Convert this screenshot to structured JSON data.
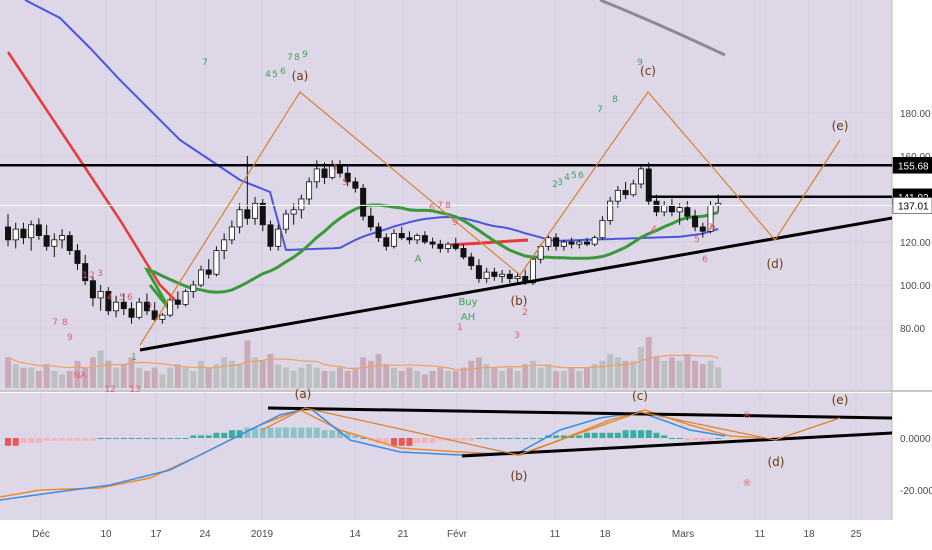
{
  "chart_data": [
    {
      "type": "candlestick",
      "title": "",
      "y_axis": {
        "side": "right",
        "ticks": [
          80.0,
          100.0,
          120.0,
          137.01,
          141.02,
          155.68,
          160.0,
          180.0
        ],
        "ylim": [
          66,
          186
        ]
      },
      "x_axis": {
        "ticks": [
          "Déc",
          "10",
          "17",
          "24",
          "2019",
          "14",
          "21",
          "Févr",
          "11",
          "18",
          "Mars",
          "11",
          "18",
          "25"
        ]
      },
      "background": "#ddd7e8",
      "price_labels": {
        "current": "137.01",
        "level_1": "141.02",
        "level_2": "155.68"
      },
      "candles": [
        {
          "o": 127,
          "h": 133,
          "l": 118,
          "c": 121
        },
        {
          "o": 121,
          "h": 129,
          "l": 117,
          "c": 126
        },
        {
          "o": 126,
          "h": 129,
          "l": 119,
          "c": 122
        },
        {
          "o": 122,
          "h": 130,
          "l": 116,
          "c": 128
        },
        {
          "o": 128,
          "h": 131,
          "l": 121,
          "c": 123
        },
        {
          "o": 123,
          "h": 128,
          "l": 116,
          "c": 118
        },
        {
          "o": 118,
          "h": 124,
          "l": 113,
          "c": 121
        },
        {
          "o": 121,
          "h": 126,
          "l": 117,
          "c": 123
        },
        {
          "o": 123,
          "h": 125,
          "l": 114,
          "c": 116
        },
        {
          "o": 116,
          "h": 119,
          "l": 107,
          "c": 110
        },
        {
          "o": 110,
          "h": 114,
          "l": 100,
          "c": 102
        },
        {
          "o": 102,
          "h": 104,
          "l": 90,
          "c": 94
        },
        {
          "o": 94,
          "h": 100,
          "l": 88,
          "c": 97
        },
        {
          "o": 97,
          "h": 99,
          "l": 86,
          "c": 88
        },
        {
          "o": 88,
          "h": 95,
          "l": 85,
          "c": 92
        },
        {
          "o": 92,
          "h": 96,
          "l": 86,
          "c": 89
        },
        {
          "o": 89,
          "h": 92,
          "l": 82,
          "c": 85
        },
        {
          "o": 85,
          "h": 94,
          "l": 84,
          "c": 92
        },
        {
          "o": 92,
          "h": 96,
          "l": 86,
          "c": 88
        },
        {
          "o": 88,
          "h": 92,
          "l": 83,
          "c": 84
        },
        {
          "o": 84,
          "h": 87,
          "l": 82,
          "c": 86
        },
        {
          "o": 86,
          "h": 95,
          "l": 85,
          "c": 93
        },
        {
          "o": 93,
          "h": 97,
          "l": 89,
          "c": 91
        },
        {
          "o": 91,
          "h": 98,
          "l": 90,
          "c": 97
        },
        {
          "o": 97,
          "h": 102,
          "l": 94,
          "c": 100
        },
        {
          "o": 100,
          "h": 109,
          "l": 99,
          "c": 107
        },
        {
          "o": 107,
          "h": 112,
          "l": 103,
          "c": 105
        },
        {
          "o": 105,
          "h": 118,
          "l": 104,
          "c": 116
        },
        {
          "o": 116,
          "h": 124,
          "l": 112,
          "c": 121
        },
        {
          "o": 121,
          "h": 130,
          "l": 119,
          "c": 127
        },
        {
          "o": 127,
          "h": 138,
          "l": 124,
          "c": 135
        },
        {
          "o": 135,
          "h": 160,
          "l": 128,
          "c": 131
        },
        {
          "o": 131,
          "h": 141,
          "l": 128,
          "c": 138
        },
        {
          "o": 138,
          "h": 140,
          "l": 125,
          "c": 128
        },
        {
          "o": 128,
          "h": 130,
          "l": 116,
          "c": 118
        },
        {
          "o": 118,
          "h": 128,
          "l": 116,
          "c": 126
        },
        {
          "o": 126,
          "h": 135,
          "l": 124,
          "c": 133
        },
        {
          "o": 133,
          "h": 138,
          "l": 128,
          "c": 135
        },
        {
          "o": 135,
          "h": 142,
          "l": 131,
          "c": 140
        },
        {
          "o": 140,
          "h": 150,
          "l": 137,
          "c": 148
        },
        {
          "o": 148,
          "h": 158,
          "l": 145,
          "c": 154
        },
        {
          "o": 154,
          "h": 157,
          "l": 147,
          "c": 150
        },
        {
          "o": 150,
          "h": 158,
          "l": 149,
          "c": 156
        },
        {
          "o": 156,
          "h": 158,
          "l": 150,
          "c": 152
        },
        {
          "o": 152,
          "h": 155,
          "l": 146,
          "c": 148
        },
        {
          "o": 148,
          "h": 150,
          "l": 143,
          "c": 145
        },
        {
          "o": 145,
          "h": 147,
          "l": 130,
          "c": 132
        },
        {
          "o": 132,
          "h": 136,
          "l": 125,
          "c": 127
        },
        {
          "o": 127,
          "h": 129,
          "l": 120,
          "c": 122
        },
        {
          "o": 122,
          "h": 124,
          "l": 116,
          "c": 118
        },
        {
          "o": 118,
          "h": 126,
          "l": 117,
          "c": 124
        },
        {
          "o": 124,
          "h": 127,
          "l": 121,
          "c": 122
        },
        {
          "o": 122,
          "h": 125,
          "l": 119,
          "c": 121
        },
        {
          "o": 121,
          "h": 124,
          "l": 119,
          "c": 123
        },
        {
          "o": 123,
          "h": 125,
          "l": 119,
          "c": 120
        },
        {
          "o": 120,
          "h": 122,
          "l": 117,
          "c": 119
        },
        {
          "o": 119,
          "h": 121,
          "l": 115,
          "c": 117
        },
        {
          "o": 117,
          "h": 120,
          "l": 115,
          "c": 119
        },
        {
          "o": 119,
          "h": 122,
          "l": 116,
          "c": 117
        },
        {
          "o": 117,
          "h": 119,
          "l": 112,
          "c": 113
        },
        {
          "o": 113,
          "h": 115,
          "l": 107,
          "c": 109
        },
        {
          "o": 109,
          "h": 112,
          "l": 101,
          "c": 103
        },
        {
          "o": 103,
          "h": 108,
          "l": 101,
          "c": 106
        },
        {
          "o": 106,
          "h": 108,
          "l": 102,
          "c": 104
        },
        {
          "o": 104,
          "h": 107,
          "l": 101,
          "c": 105
        },
        {
          "o": 105,
          "h": 107,
          "l": 101,
          "c": 103
        },
        {
          "o": 103,
          "h": 106,
          "l": 101,
          "c": 104
        },
        {
          "o": 104,
          "h": 107,
          "l": 100,
          "c": 101
        },
        {
          "o": 101,
          "h": 113,
          "l": 100,
          "c": 112
        },
        {
          "o": 112,
          "h": 119,
          "l": 110,
          "c": 118
        },
        {
          "o": 118,
          "h": 123,
          "l": 116,
          "c": 122
        },
        {
          "o": 122,
          "h": 124,
          "l": 116,
          "c": 118
        },
        {
          "o": 118,
          "h": 121,
          "l": 116,
          "c": 120
        },
        {
          "o": 120,
          "h": 122,
          "l": 117,
          "c": 119
        },
        {
          "o": 119,
          "h": 121,
          "l": 117,
          "c": 120
        },
        {
          "o": 120,
          "h": 122,
          "l": 118,
          "c": 119
        },
        {
          "o": 119,
          "h": 123,
          "l": 118,
          "c": 122
        },
        {
          "o": 122,
          "h": 132,
          "l": 121,
          "c": 130
        },
        {
          "o": 130,
          "h": 141,
          "l": 128,
          "c": 139
        },
        {
          "o": 139,
          "h": 146,
          "l": 136,
          "c": 144
        },
        {
          "o": 144,
          "h": 148,
          "l": 140,
          "c": 142
        },
        {
          "o": 142,
          "h": 149,
          "l": 141,
          "c": 147
        },
        {
          "o": 147,
          "h": 156,
          "l": 145,
          "c": 154
        },
        {
          "o": 154,
          "h": 157,
          "l": 137,
          "c": 139
        },
        {
          "o": 139,
          "h": 142,
          "l": 132,
          "c": 134
        },
        {
          "o": 134,
          "h": 139,
          "l": 132,
          "c": 137
        },
        {
          "o": 137,
          "h": 140,
          "l": 132,
          "c": 134
        },
        {
          "o": 134,
          "h": 138,
          "l": 128,
          "c": 136
        },
        {
          "o": 136,
          "h": 139,
          "l": 130,
          "c": 132
        },
        {
          "o": 132,
          "h": 135,
          "l": 125,
          "c": 127
        },
        {
          "o": 127,
          "h": 129,
          "l": 122,
          "c": 125
        },
        {
          "o": 125,
          "h": 139,
          "l": 124,
          "c": 137
        },
        {
          "o": 137,
          "h": 142,
          "l": 134,
          "c": 138
        }
      ],
      "volume": [
        9,
        7,
        6,
        6,
        5,
        7,
        5,
        4,
        5,
        8,
        6,
        9,
        11,
        8,
        6,
        7,
        9,
        6,
        5,
        6,
        4,
        6,
        7,
        6,
        5,
        8,
        6,
        7,
        9,
        8,
        7,
        14,
        9,
        8,
        10,
        7,
        6,
        5,
        6,
        7,
        6,
        5,
        5,
        6,
        5,
        6,
        9,
        8,
        10,
        7,
        6,
        5,
        6,
        5,
        4,
        5,
        6,
        5,
        5,
        6,
        8,
        9,
        7,
        6,
        5,
        6,
        5,
        7,
        8,
        6,
        7,
        5,
        5,
        6,
        5,
        6,
        7,
        8,
        10,
        9,
        8,
        8,
        12,
        15,
        9,
        8,
        9,
        8,
        10,
        8,
        7,
        8,
        6
      ],
      "wave_labels": [
        "(a)",
        "(b)",
        "(c)",
        "(d)",
        "(e)"
      ],
      "annotations": [
        "Buy",
        "AH",
        "A",
        "A"
      ],
      "td_counts_green": [
        "7",
        "4",
        "5",
        "6",
        "7",
        "8",
        "9",
        "1",
        "2",
        "3",
        "4",
        "5",
        "6",
        "7",
        "8",
        "9"
      ],
      "td_counts_red": [
        "7",
        "8",
        "9",
        "1",
        "2",
        "3",
        "4",
        "5",
        "6",
        "7",
        "4",
        "5",
        "6",
        "7",
        "8",
        "9",
        "1",
        "2",
        "3",
        "4",
        "5",
        "6",
        "7",
        "12",
        "13",
        "NA"
      ]
    },
    {
      "type": "macd",
      "y_axis": {
        "ticks": [
          "0.0000",
          "-20.0000"
        ],
        "ylim": [
          -27,
          17
        ]
      },
      "histogram": [
        -3,
        -3,
        -2,
        -2,
        -2,
        -1,
        -1,
        -1,
        -1,
        -1,
        -1,
        -1,
        0,
        0,
        0,
        0,
        0,
        0,
        0,
        0,
        0,
        0,
        0,
        0,
        1,
        1,
        1,
        2,
        2,
        3,
        3,
        4,
        4,
        4,
        4,
        4,
        4,
        4,
        4,
        4,
        4,
        3,
        3,
        3,
        2,
        1,
        0,
        -1,
        -2,
        -2,
        -3,
        -3,
        -3,
        -2,
        -2,
        -2,
        -1,
        -1,
        -1,
        -1,
        -1,
        0,
        0,
        0,
        0,
        0,
        0,
        0,
        0,
        0,
        1,
        1,
        1,
        1,
        1,
        2,
        2,
        2,
        2,
        2,
        3,
        3,
        3,
        3,
        2,
        1,
        0,
        0,
        -1,
        -1,
        -1,
        -1,
        0
      ],
      "wave_labels": [
        "(a)",
        "(b)",
        "(c)",
        "(d)",
        "(e)"
      ],
      "markers": [
        "®",
        "®"
      ]
    }
  ]
}
